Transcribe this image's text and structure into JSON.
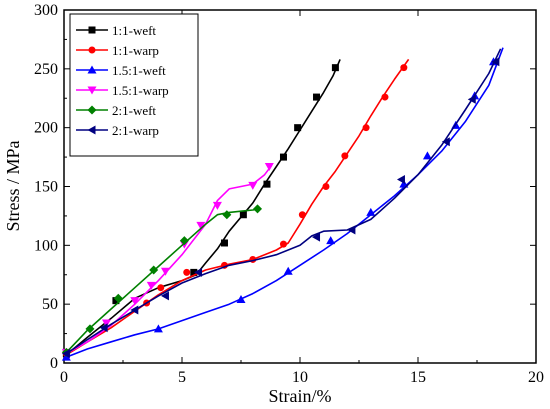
{
  "chart_data": {
    "type": "line",
    "xlabel": "Strain/%",
    "ylabel": "Stress / MPa",
    "xlim": [
      0,
      20
    ],
    "ylim": [
      0,
      300
    ],
    "xticks": [
      0,
      5,
      10,
      15,
      20
    ],
    "yticks": [
      0,
      50,
      100,
      150,
      200,
      250,
      300
    ],
    "x_tick_labels": [
      "0",
      "5",
      "10",
      "15",
      "20"
    ],
    "y_tick_labels": [
      "0",
      "50",
      "100",
      "150",
      "200",
      "250",
      "300"
    ],
    "grid": false,
    "legend_position": "top-left",
    "series": [
      {
        "name": "1:1-weft",
        "color": "#000000",
        "marker": "square",
        "points": [
          [
            0.1,
            7
          ],
          [
            1,
            22
          ],
          [
            2,
            38
          ],
          [
            3,
            55
          ],
          [
            4,
            64
          ],
          [
            5,
            70
          ],
          [
            5.6,
            75
          ],
          [
            6,
            85
          ],
          [
            6.5,
            97
          ],
          [
            7,
            112
          ],
          [
            7.5,
            124
          ],
          [
            8,
            136
          ],
          [
            8.5,
            152
          ],
          [
            9,
            167
          ],
          [
            9.5,
            182
          ],
          [
            10,
            198
          ],
          [
            10.5,
            214
          ],
          [
            11,
            230
          ],
          [
            11.4,
            244
          ],
          [
            11.7,
            258
          ]
        ],
        "marker_points": [
          [
            0.1,
            8
          ],
          [
            2.2,
            53
          ],
          [
            5.5,
            77
          ],
          [
            6.8,
            102
          ],
          [
            7.6,
            126
          ],
          [
            8.6,
            152
          ],
          [
            9.3,
            175
          ],
          [
            9.9,
            200
          ],
          [
            10.7,
            226
          ],
          [
            11.5,
            251
          ]
        ]
      },
      {
        "name": "1:1-warp",
        "color": "#ff0000",
        "marker": "circle",
        "points": [
          [
            0.1,
            7
          ],
          [
            1,
            18
          ],
          [
            2,
            30
          ],
          [
            3,
            44
          ],
          [
            4,
            58
          ],
          [
            5,
            70
          ],
          [
            6,
            79
          ],
          [
            7,
            84
          ],
          [
            8,
            88
          ],
          [
            9,
            96
          ],
          [
            9.5,
            102
          ],
          [
            10,
            118
          ],
          [
            10.5,
            135
          ],
          [
            11,
            150
          ],
          [
            11.5,
            163
          ],
          [
            12,
            178
          ],
          [
            12.5,
            193
          ],
          [
            13,
            210
          ],
          [
            13.5,
            226
          ],
          [
            14,
            241
          ],
          [
            14.6,
            258
          ]
        ],
        "marker_points": [
          [
            0.1,
            8
          ],
          [
            3.5,
            51
          ],
          [
            4.1,
            64
          ],
          [
            5.2,
            77
          ],
          [
            6.8,
            83
          ],
          [
            8,
            88
          ],
          [
            9.3,
            101
          ],
          [
            10.1,
            126
          ],
          [
            11.1,
            150
          ],
          [
            11.9,
            176
          ],
          [
            12.8,
            200
          ],
          [
            13.6,
            226
          ],
          [
            14.4,
            251
          ]
        ]
      },
      {
        "name": "1.5:1-weft",
        "color": "#0000ff",
        "marker": "triangle-up",
        "points": [
          [
            0.1,
            5
          ],
          [
            1,
            12
          ],
          [
            2,
            18
          ],
          [
            3,
            24
          ],
          [
            4,
            29
          ],
          [
            5,
            36
          ],
          [
            6,
            43
          ],
          [
            7,
            50
          ],
          [
            8,
            59
          ],
          [
            9,
            70
          ],
          [
            10,
            83
          ],
          [
            11,
            96
          ],
          [
            12,
            110
          ],
          [
            13,
            126
          ],
          [
            14,
            142
          ],
          [
            15,
            160
          ],
          [
            16,
            180
          ],
          [
            17,
            205
          ],
          [
            18,
            236
          ],
          [
            18.6,
            268
          ]
        ],
        "marker_points": [
          [
            0.1,
            5
          ],
          [
            4,
            29
          ],
          [
            7.5,
            54
          ],
          [
            9.5,
            78
          ],
          [
            11.3,
            104
          ],
          [
            13,
            128
          ],
          [
            14.4,
            152
          ],
          [
            15.4,
            176
          ],
          [
            16.6,
            202
          ],
          [
            17.4,
            227
          ],
          [
            18.2,
            256
          ]
        ]
      },
      {
        "name": "1.5:1-warp",
        "color": "#ff00ff",
        "marker": "triangle-down",
        "points": [
          [
            0.1,
            8
          ],
          [
            1,
            18
          ],
          [
            2,
            32
          ],
          [
            3,
            50
          ],
          [
            4,
            70
          ],
          [
            5,
            92
          ],
          [
            6,
            118
          ],
          [
            6.5,
            138
          ],
          [
            7,
            148
          ],
          [
            7.5,
            150
          ],
          [
            8,
            152
          ],
          [
            8.5,
            160
          ],
          [
            8.8,
            168
          ]
        ],
        "marker_points": [
          [
            0.1,
            9
          ],
          [
            1.8,
            34
          ],
          [
            3,
            53
          ],
          [
            3.7,
            66
          ],
          [
            4.3,
            78
          ],
          [
            5.1,
            101
          ],
          [
            5.8,
            117
          ],
          [
            6.5,
            134
          ],
          [
            8,
            151
          ],
          [
            8.7,
            167
          ]
        ]
      },
      {
        "name": "2:1-weft",
        "color": "#008000",
        "marker": "diamond",
        "points": [
          [
            0.1,
            9
          ],
          [
            1,
            28
          ],
          [
            2,
            46
          ],
          [
            3,
            64
          ],
          [
            4,
            82
          ],
          [
            5,
            100
          ],
          [
            6,
            118
          ],
          [
            6.5,
            126
          ],
          [
            7,
            128
          ],
          [
            7.5,
            129
          ],
          [
            8,
            130
          ],
          [
            8.3,
            131
          ]
        ],
        "marker_points": [
          [
            0.1,
            9
          ],
          [
            1.1,
            29
          ],
          [
            2.3,
            55
          ],
          [
            3.8,
            79
          ],
          [
            5.1,
            104
          ],
          [
            6.9,
            126
          ],
          [
            8.2,
            131
          ]
        ]
      },
      {
        "name": "2:1-warp",
        "color": "#000080",
        "marker": "triangle-left",
        "points": [
          [
            0.1,
            8
          ],
          [
            1,
            20
          ],
          [
            2,
            33
          ],
          [
            3,
            45
          ],
          [
            4,
            57
          ],
          [
            5,
            68
          ],
          [
            6,
            76
          ],
          [
            7,
            83
          ],
          [
            8,
            87
          ],
          [
            9,
            92
          ],
          [
            10,
            100
          ],
          [
            10.5,
            108
          ],
          [
            11,
            112
          ],
          [
            12,
            113
          ],
          [
            13,
            122
          ],
          [
            14,
            140
          ],
          [
            15,
            160
          ],
          [
            16,
            185
          ],
          [
            17,
            215
          ],
          [
            18,
            246
          ],
          [
            18.5,
            267
          ]
        ],
        "marker_points": [
          [
            0.1,
            8
          ],
          [
            1.7,
            30
          ],
          [
            3,
            45
          ],
          [
            4.3,
            57
          ],
          [
            5.7,
            77
          ],
          [
            10.7,
            107
          ],
          [
            12.2,
            113
          ],
          [
            14.3,
            156
          ],
          [
            16.2,
            188
          ],
          [
            17.3,
            224
          ],
          [
            18.3,
            256
          ]
        ]
      }
    ]
  }
}
